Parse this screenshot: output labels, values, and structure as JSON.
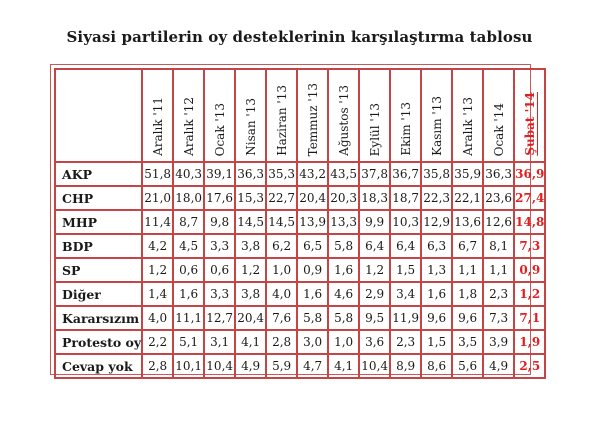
{
  "title": "Siyasi partilerin oy desteklerinin karşılaştırma tablosu",
  "colors": {
    "border": "#c44545",
    "highlight": "#e02020"
  },
  "months": [
    "Aralık '11",
    "Aralık '12",
    "Ocak '13",
    "Nisan '13",
    "Haziran '13",
    "Temmuz '13",
    "Ağustos '13",
    "Eylül '13",
    "Ekim '13",
    "Kasım '13",
    "Aralık '13",
    "Ocak '14",
    "Şubat '14"
  ],
  "rows": [
    {
      "party": "AKP",
      "values": [
        "51,8",
        "40,3",
        "39,1",
        "36,3",
        "35,3",
        "43,2",
        "43,5",
        "37,8",
        "36,7",
        "35,8",
        "35,9",
        "36,3",
        "36,9"
      ]
    },
    {
      "party": "CHP",
      "values": [
        "21,0",
        "18,0",
        "17,6",
        "15,3",
        "22,7",
        "20,4",
        "20,3",
        "18,3",
        "18,7",
        "22,3",
        "22,1",
        "23,6",
        "27,4"
      ]
    },
    {
      "party": "MHP",
      "values": [
        "11,4",
        "8,7",
        "9,8",
        "14,5",
        "14,5",
        "13,9",
        "13,3",
        "9,9",
        "10,3",
        "12,9",
        "13,6",
        "12,6",
        "14,8"
      ]
    },
    {
      "party": "BDP",
      "values": [
        "4,2",
        "4,5",
        "3,3",
        "3,8",
        "6,2",
        "6,5",
        "5,8",
        "6,4",
        "6,4",
        "6,3",
        "6,7",
        "8,1",
        "7,3"
      ]
    },
    {
      "party": "SP",
      "values": [
        "1,2",
        "0,6",
        "0,6",
        "1,2",
        "1,0",
        "0,9",
        "1,6",
        "1,2",
        "1,5",
        "1,3",
        "1,1",
        "1,1",
        "0,9"
      ]
    },
    {
      "party": "Diğer",
      "values": [
        "1,4",
        "1,6",
        "3,3",
        "3,8",
        "4,0",
        "1,6",
        "4,6",
        "2,9",
        "3,4",
        "1,6",
        "1,8",
        "2,3",
        "1,2"
      ]
    },
    {
      "party": "Kararsızım",
      "values": [
        "4,0",
        "11,1",
        "12,7",
        "20,4",
        "7,6",
        "5,8",
        "5,8",
        "9,5",
        "11,9",
        "9,6",
        "9,6",
        "7,3",
        "7,1"
      ]
    },
    {
      "party": "Protesto oy",
      "values": [
        "2,2",
        "5,1",
        "3,1",
        "4,1",
        "2,8",
        "3,0",
        "1,0",
        "3,6",
        "2,3",
        "1,5",
        "3,5",
        "3,9",
        "1,9"
      ]
    },
    {
      "party": "Cevap yok",
      "values": [
        "2,8",
        "10,1",
        "10,4",
        "4,9",
        "5,9",
        "4,7",
        "4,1",
        "10,4",
        "8,9",
        "8,6",
        "5,6",
        "4,9",
        "2,5"
      ]
    }
  ]
}
